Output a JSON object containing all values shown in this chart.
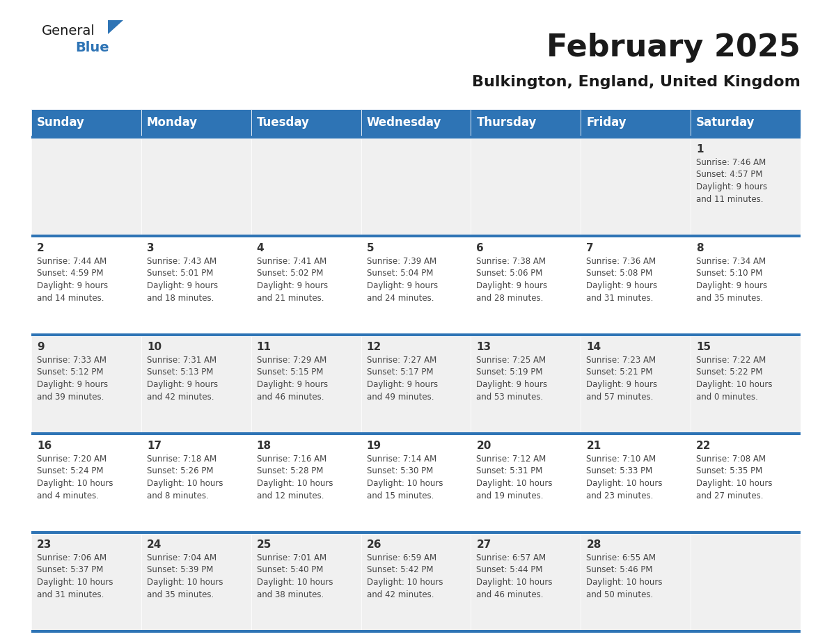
{
  "title": "February 2025",
  "subtitle": "Bulkington, England, United Kingdom",
  "header_bg": "#2E74B5",
  "header_text_color": "#FFFFFF",
  "cell_bg_odd": "#F0F0F0",
  "cell_bg_even": "#FFFFFF",
  "day_headers": [
    "Sunday",
    "Monday",
    "Tuesday",
    "Wednesday",
    "Thursday",
    "Friday",
    "Saturday"
  ],
  "title_fontsize": 32,
  "subtitle_fontsize": 16,
  "header_fontsize": 12,
  "cell_day_fontsize": 11,
  "cell_info_fontsize": 8.5,
  "logo_general_fontsize": 14,
  "logo_blue_fontsize": 14,
  "calendar_data": [
    [
      {
        "day": "",
        "info": ""
      },
      {
        "day": "",
        "info": ""
      },
      {
        "day": "",
        "info": ""
      },
      {
        "day": "",
        "info": ""
      },
      {
        "day": "",
        "info": ""
      },
      {
        "day": "",
        "info": ""
      },
      {
        "day": "1",
        "info": "Sunrise: 7:46 AM\nSunset: 4:57 PM\nDaylight: 9 hours\nand 11 minutes."
      }
    ],
    [
      {
        "day": "2",
        "info": "Sunrise: 7:44 AM\nSunset: 4:59 PM\nDaylight: 9 hours\nand 14 minutes."
      },
      {
        "day": "3",
        "info": "Sunrise: 7:43 AM\nSunset: 5:01 PM\nDaylight: 9 hours\nand 18 minutes."
      },
      {
        "day": "4",
        "info": "Sunrise: 7:41 AM\nSunset: 5:02 PM\nDaylight: 9 hours\nand 21 minutes."
      },
      {
        "day": "5",
        "info": "Sunrise: 7:39 AM\nSunset: 5:04 PM\nDaylight: 9 hours\nand 24 minutes."
      },
      {
        "day": "6",
        "info": "Sunrise: 7:38 AM\nSunset: 5:06 PM\nDaylight: 9 hours\nand 28 minutes."
      },
      {
        "day": "7",
        "info": "Sunrise: 7:36 AM\nSunset: 5:08 PM\nDaylight: 9 hours\nand 31 minutes."
      },
      {
        "day": "8",
        "info": "Sunrise: 7:34 AM\nSunset: 5:10 PM\nDaylight: 9 hours\nand 35 minutes."
      }
    ],
    [
      {
        "day": "9",
        "info": "Sunrise: 7:33 AM\nSunset: 5:12 PM\nDaylight: 9 hours\nand 39 minutes."
      },
      {
        "day": "10",
        "info": "Sunrise: 7:31 AM\nSunset: 5:13 PM\nDaylight: 9 hours\nand 42 minutes."
      },
      {
        "day": "11",
        "info": "Sunrise: 7:29 AM\nSunset: 5:15 PM\nDaylight: 9 hours\nand 46 minutes."
      },
      {
        "day": "12",
        "info": "Sunrise: 7:27 AM\nSunset: 5:17 PM\nDaylight: 9 hours\nand 49 minutes."
      },
      {
        "day": "13",
        "info": "Sunrise: 7:25 AM\nSunset: 5:19 PM\nDaylight: 9 hours\nand 53 minutes."
      },
      {
        "day": "14",
        "info": "Sunrise: 7:23 AM\nSunset: 5:21 PM\nDaylight: 9 hours\nand 57 minutes."
      },
      {
        "day": "15",
        "info": "Sunrise: 7:22 AM\nSunset: 5:22 PM\nDaylight: 10 hours\nand 0 minutes."
      }
    ],
    [
      {
        "day": "16",
        "info": "Sunrise: 7:20 AM\nSunset: 5:24 PM\nDaylight: 10 hours\nand 4 minutes."
      },
      {
        "day": "17",
        "info": "Sunrise: 7:18 AM\nSunset: 5:26 PM\nDaylight: 10 hours\nand 8 minutes."
      },
      {
        "day": "18",
        "info": "Sunrise: 7:16 AM\nSunset: 5:28 PM\nDaylight: 10 hours\nand 12 minutes."
      },
      {
        "day": "19",
        "info": "Sunrise: 7:14 AM\nSunset: 5:30 PM\nDaylight: 10 hours\nand 15 minutes."
      },
      {
        "day": "20",
        "info": "Sunrise: 7:12 AM\nSunset: 5:31 PM\nDaylight: 10 hours\nand 19 minutes."
      },
      {
        "day": "21",
        "info": "Sunrise: 7:10 AM\nSunset: 5:33 PM\nDaylight: 10 hours\nand 23 minutes."
      },
      {
        "day": "22",
        "info": "Sunrise: 7:08 AM\nSunset: 5:35 PM\nDaylight: 10 hours\nand 27 minutes."
      }
    ],
    [
      {
        "day": "23",
        "info": "Sunrise: 7:06 AM\nSunset: 5:37 PM\nDaylight: 10 hours\nand 31 minutes."
      },
      {
        "day": "24",
        "info": "Sunrise: 7:04 AM\nSunset: 5:39 PM\nDaylight: 10 hours\nand 35 minutes."
      },
      {
        "day": "25",
        "info": "Sunrise: 7:01 AM\nSunset: 5:40 PM\nDaylight: 10 hours\nand 38 minutes."
      },
      {
        "day": "26",
        "info": "Sunrise: 6:59 AM\nSunset: 5:42 PM\nDaylight: 10 hours\nand 42 minutes."
      },
      {
        "day": "27",
        "info": "Sunrise: 6:57 AM\nSunset: 5:44 PM\nDaylight: 10 hours\nand 46 minutes."
      },
      {
        "day": "28",
        "info": "Sunrise: 6:55 AM\nSunset: 5:46 PM\nDaylight: 10 hours\nand 50 minutes."
      },
      {
        "day": "",
        "info": ""
      }
    ]
  ]
}
